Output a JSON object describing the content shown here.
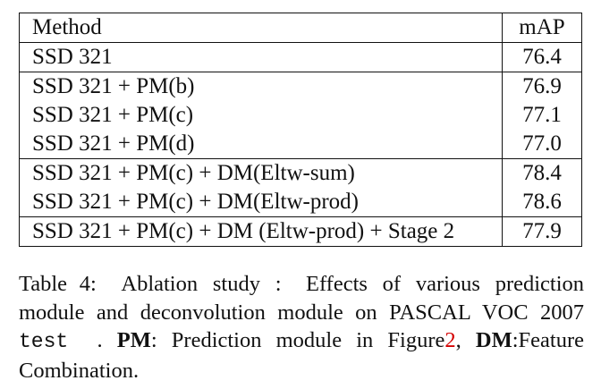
{
  "table": {
    "headers": [
      "Method",
      "mAP"
    ],
    "rows": [
      {
        "method": "SSD 321",
        "map": "76.4"
      },
      {
        "method": "SSD 321 + PM(b)",
        "map": "76.9"
      },
      {
        "method": "SSD 321 + PM(c)",
        "map": "77.1"
      },
      {
        "method": "SSD 321 + PM(d)",
        "map": "77.0"
      },
      {
        "method": "SSD 321 + PM(c) + DM(Eltw-sum)",
        "map": "78.4"
      },
      {
        "method": "SSD 321 + PM(c) + DM(Eltw-prod)",
        "map": "78.6"
      },
      {
        "method": "SSD 321 + PM(c) + DM (Eltw-prod) + Stage 2",
        "map": "77.9"
      }
    ]
  },
  "caption": {
    "label": "Table 4:",
    "text1": "Ablation study :",
    "text2": "Effects of various prediction module and deconvolution module on PASCAL VOC 2007",
    "mono": "test",
    "text3": ".",
    "pm_abbr": "PM",
    "pm_text": ": Prediction module in Figure",
    "fig_ref": "2",
    "comma": ",",
    "dm_abbr": "DM",
    "dm_text": ":Feature Combination."
  },
  "colors": {
    "text": "#111111",
    "link": "#d40000"
  }
}
